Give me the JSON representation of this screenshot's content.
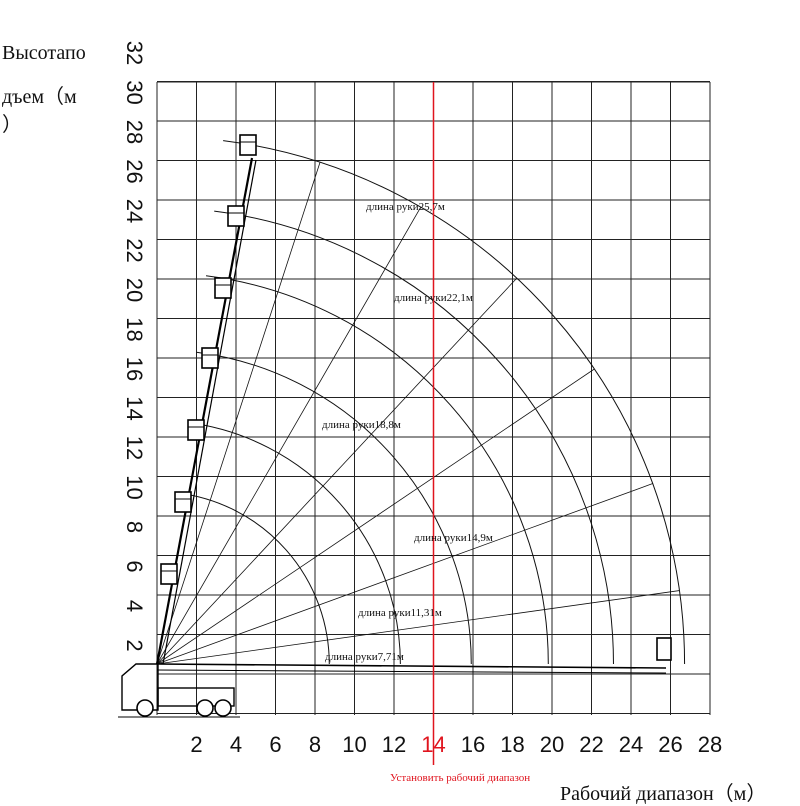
{
  "y_axis": {
    "label_lines": [
      "Высотапо",
      "дъем（м",
      "）"
    ],
    "ticks": [
      "2",
      "4",
      "6",
      "8",
      "10",
      "12",
      "14",
      "16",
      "18",
      "20",
      "22",
      "24",
      "26",
      "28",
      "30",
      "32"
    ]
  },
  "x_axis": {
    "label": "Рабочий диапазон（м）",
    "ticks": [
      "2",
      "4",
      "6",
      "8",
      "10",
      "12",
      "14",
      "16",
      "18",
      "20",
      "22",
      "24",
      "26",
      "28"
    ],
    "highlight_tick": "14"
  },
  "limit_line": {
    "label": "Установить рабочий диапазон",
    "x": 14,
    "color": "#e0141e"
  },
  "boom_lengths": [
    {
      "label": "длина руки7,71м",
      "radius": 7.71
    },
    {
      "label": "длина руки11,31м",
      "radius": 11.31
    },
    {
      "label": "длина руки14,9м",
      "radius": 14.9
    },
    {
      "label": "длина руки18,8м",
      "radius": 18.8
    },
    {
      "label": "длина руки22,1м",
      "radius": 22.1
    },
    {
      "label": "длина руки25,7м",
      "radius": 25.7
    }
  ],
  "colors": {
    "grid": "#222222",
    "lines": "#111111",
    "accent": "#e0141e"
  }
}
